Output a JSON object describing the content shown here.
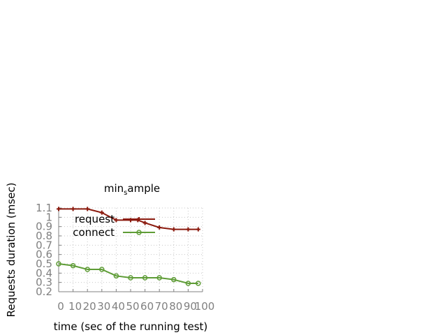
{
  "chart_data": {
    "type": "line",
    "title": "min",
    "title_subscript": "s",
    "title_suffix": "ample",
    "xlabel": "time (sec of the running test)",
    "ylabel": "Requests duration (msec)",
    "xlim": [
      0,
      100
    ],
    "ylim": [
      0.2,
      1.1
    ],
    "xticks": [
      0,
      10,
      20,
      30,
      40,
      50,
      60,
      70,
      80,
      90,
      100
    ],
    "xtick_labels": [
      "0",
      "10",
      "20",
      "30",
      "40",
      "50",
      "60",
      "70",
      "80",
      "90",
      "100"
    ],
    "yticks": [
      0.2,
      0.3,
      0.4,
      0.5,
      0.6,
      0.7,
      0.8,
      0.9,
      1.0,
      1.1
    ],
    "ytick_labels": [
      "0.2",
      "0.3",
      "0.4",
      "0.5",
      "0.6",
      "0.7",
      "0.8",
      "0.9",
      "1",
      "1.1"
    ],
    "grid": true,
    "legend": "top-right",
    "series": [
      {
        "name": "request",
        "color": "#8b1a0e",
        "marker": "plus",
        "x": [
          0,
          10,
          20,
          30,
          40,
          50,
          55,
          60,
          70,
          80,
          90,
          97
        ],
        "y": [
          1.09,
          1.09,
          1.09,
          1.05,
          0.97,
          0.97,
          0.97,
          0.94,
          0.89,
          0.87,
          0.87,
          0.87
        ]
      },
      {
        "name": "connect",
        "color": "#5e9c36",
        "marker": "circle",
        "x": [
          0,
          10,
          20,
          30,
          40,
          50,
          60,
          70,
          80,
          90,
          97
        ],
        "y": [
          0.5,
          0.48,
          0.44,
          0.44,
          0.37,
          0.35,
          0.35,
          0.35,
          0.33,
          0.29,
          0.29
        ]
      }
    ]
  }
}
